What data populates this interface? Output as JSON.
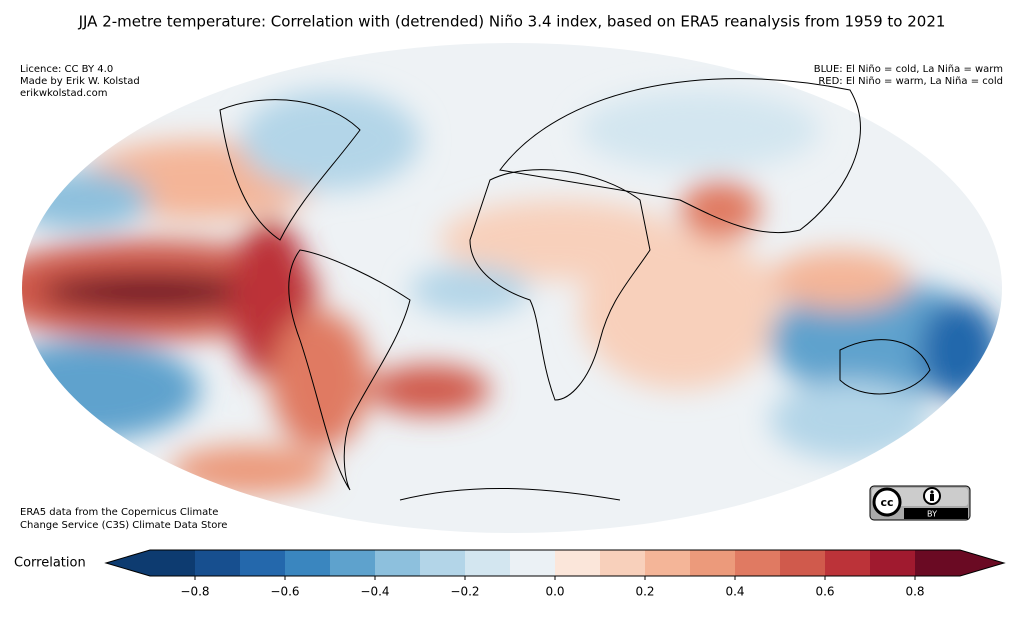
{
  "title": "JJA 2-metre temperature: Correlation with (detrended) Niño 3.4 index, based on ERA5 reanalysis from 1959 to 2021",
  "licence_lines": [
    "Licence: CC BY 4.0",
    "Made by Erik W. Kolstad",
    "erikwkolstad.com"
  ],
  "legend_lines": [
    "BLUE: El Niño = cold, La Niña = warm",
    "RED: El Niño = warm, La Niña = cold"
  ],
  "source_lines": [
    "ERA5 data from the Copernicus Climate",
    "Change Service (C3S) Climate Data Store"
  ],
  "badge": "BY",
  "colorbar": {
    "label": "Correlation",
    "lim": [
      -0.9,
      0.9
    ],
    "ticks": [
      {
        "value": -0.8,
        "label": "−0.8"
      },
      {
        "value": -0.6,
        "label": "−0.6"
      },
      {
        "value": -0.4,
        "label": "−0.4"
      },
      {
        "value": -0.2,
        "label": "−0.2"
      },
      {
        "value": 0,
        "label": "0.0"
      },
      0.2,
      0.4,
      0.6,
      0.8
    ],
    "colors": [
      "#0d3b70",
      "#174f8f",
      "#2468ac",
      "#3a86bf",
      "#5ea2cd",
      "#8dc0dd",
      "#b3d5e8",
      "#d3e6f0",
      "#ebf1f5",
      "#fbe6da",
      "#f8d0bb",
      "#f4b598",
      "#ec9a7b",
      "#e07a62",
      "#d05a4c",
      "#bc3339",
      "#a01a2f",
      "#6a0a23"
    ],
    "extend": "both"
  }
}
